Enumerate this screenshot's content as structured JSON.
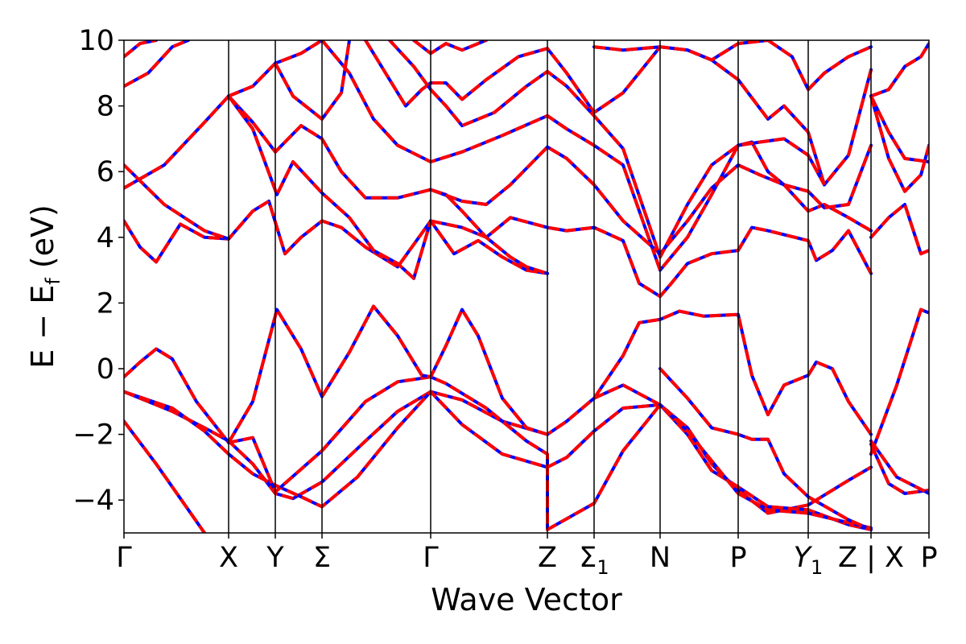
{
  "chart_data": {
    "type": "line",
    "xlabel": "Wave Vector",
    "ylabel_main": "E − E",
    "ylabel_sub": "f",
    "ylabel_unit": " (eV)",
    "xlim": [
      0,
      1
    ],
    "ylim": [
      -5,
      10
    ],
    "y_ticks": [
      {
        "v": -4,
        "label": "−4"
      },
      {
        "v": -2,
        "label": "−2"
      },
      {
        "v": 0,
        "label": "0"
      },
      {
        "v": 2,
        "label": "2"
      },
      {
        "v": 4,
        "label": "4"
      },
      {
        "v": 6,
        "label": "6"
      },
      {
        "v": 8,
        "label": "8"
      },
      {
        "v": 10,
        "label": "10"
      }
    ],
    "k_points": [
      {
        "x": 0.0,
        "label": "Γ",
        "sub": ""
      },
      {
        "x": 0.13,
        "label": "X",
        "sub": ""
      },
      {
        "x": 0.188,
        "label": "Y",
        "sub": ""
      },
      {
        "x": 0.246,
        "label": "Σ",
        "sub": ""
      },
      {
        "x": 0.381,
        "label": "Γ",
        "sub": ""
      },
      {
        "x": 0.526,
        "label": "Z",
        "sub": ""
      },
      {
        "x": 0.584,
        "label": "Σ",
        "sub": "1"
      },
      {
        "x": 0.666,
        "label": "N",
        "sub": ""
      },
      {
        "x": 0.763,
        "label": "P",
        "sub": ""
      },
      {
        "x": 0.85,
        "label": "Y",
        "sub": "1",
        "italic": true
      },
      {
        "x": 0.928,
        "label": "Z | X",
        "sub": ""
      },
      {
        "x": 1.0,
        "label": "P",
        "sub": ""
      }
    ],
    "grid": false,
    "band_color_a": "#0000ff",
    "band_color_b": "#ff0000",
    "bands": [
      [
        [
          0,
          -1.6
        ],
        [
          0.04,
          -2.9
        ],
        [
          0.08,
          -4.3
        ],
        [
          0.1,
          -5.0
        ]
      ],
      [
        [
          0,
          -0.7
        ],
        [
          0.06,
          -1.3
        ],
        [
          0.1,
          -1.8
        ],
        [
          0.13,
          -2.2
        ],
        [
          0.16,
          -2.9
        ],
        [
          0.188,
          -3.8
        ],
        [
          0.21,
          -3.95
        ],
        [
          0.246,
          -3.45
        ],
        [
          0.3,
          -2.2
        ],
        [
          0.34,
          -1.3
        ],
        [
          0.381,
          -0.7
        ],
        [
          0.42,
          -0.95
        ],
        [
          0.47,
          -1.6
        ],
        [
          0.526,
          -2.0
        ],
        [
          0.55,
          -1.6
        ],
        [
          0.584,
          -0.9
        ],
        [
          0.62,
          -0.5
        ],
        [
          0.666,
          -1.1
        ],
        [
          0.7,
          -1.8
        ],
        [
          0.73,
          -2.9
        ],
        [
          0.763,
          -3.7
        ],
        [
          0.8,
          -4.4
        ],
        [
          0.85,
          -4.15
        ],
        [
          0.9,
          -3.4
        ],
        [
          0.928,
          -3.0
        ]
      ],
      [
        [
          0,
          -0.7
        ],
        [
          0.06,
          -1.2
        ],
        [
          0.1,
          -1.9
        ],
        [
          0.13,
          -2.6
        ],
        [
          0.16,
          -3.2
        ],
        [
          0.188,
          -3.55
        ],
        [
          0.22,
          -3.9
        ],
        [
          0.246,
          -4.2
        ],
        [
          0.29,
          -3.3
        ],
        [
          0.34,
          -1.8
        ],
        [
          0.381,
          -0.7
        ],
        [
          0.42,
          -1.7
        ],
        [
          0.47,
          -2.6
        ],
        [
          0.526,
          -3.0
        ],
        [
          0.55,
          -2.7
        ],
        [
          0.584,
          -1.9
        ],
        [
          0.62,
          -1.2
        ],
        [
          0.666,
          -1.1
        ],
        [
          0.7,
          -2.0
        ],
        [
          0.73,
          -3.1
        ],
        [
          0.763,
          -3.6
        ],
        [
          0.8,
          -4.2
        ],
        [
          0.85,
          -4.3
        ],
        [
          0.9,
          -4.75
        ],
        [
          0.928,
          -4.9
        ]
      ],
      [
        [
          0,
          -0.25
        ],
        [
          0.02,
          0.2
        ],
        [
          0.04,
          0.6
        ],
        [
          0.06,
          0.3
        ],
        [
          0.09,
          -1.0
        ],
        [
          0.13,
          -2.25
        ],
        [
          0.16,
          -2.1
        ],
        [
          0.188,
          -3.75
        ],
        [
          0.246,
          -2.5
        ],
        [
          0.3,
          -1.0
        ],
        [
          0.34,
          -0.4
        ],
        [
          0.381,
          -0.25
        ],
        [
          0.4,
          -0.45
        ],
        [
          0.45,
          -1.2
        ],
        [
          0.5,
          -2.2
        ],
        [
          0.526,
          -2.6
        ],
        [
          0.526,
          -4.9
        ],
        [
          0.584,
          -4.1
        ],
        [
          0.62,
          -2.5
        ],
        [
          0.666,
          -1.1
        ],
        [
          0.7,
          -1.9
        ],
        [
          0.763,
          -3.8
        ],
        [
          0.8,
          -4.3
        ],
        [
          0.85,
          -4.4
        ],
        [
          0.928,
          -4.85
        ]
      ],
      [
        [
          0.13,
          -2.25
        ],
        [
          0.16,
          -1.0
        ],
        [
          0.19,
          1.8
        ],
        [
          0.22,
          0.6
        ],
        [
          0.246,
          -0.85
        ],
        [
          0.28,
          0.5
        ],
        [
          0.31,
          1.9
        ],
        [
          0.34,
          1.0
        ],
        [
          0.37,
          -0.2
        ],
        [
          0.381,
          -0.25
        ],
        [
          0.4,
          0.7
        ],
        [
          0.42,
          1.8
        ],
        [
          0.44,
          1.0
        ],
        [
          0.47,
          -0.9
        ],
        [
          0.5,
          -1.8
        ],
        [
          0.526,
          -2.0
        ]
      ],
      [
        [
          0.584,
          -0.9
        ],
        [
          0.62,
          0.4
        ],
        [
          0.64,
          1.4
        ],
        [
          0.666,
          1.5
        ],
        [
          0.69,
          1.75
        ],
        [
          0.72,
          1.6
        ],
        [
          0.763,
          1.65
        ],
        [
          0.78,
          -0.2
        ],
        [
          0.8,
          -1.4
        ],
        [
          0.82,
          -0.5
        ],
        [
          0.85,
          -0.2
        ],
        [
          0.86,
          0.2
        ],
        [
          0.88,
          0.0
        ],
        [
          0.9,
          -1.0
        ],
        [
          0.928,
          -2.0
        ]
      ],
      [
        [
          0.666,
          0.0
        ],
        [
          0.7,
          -0.9
        ],
        [
          0.73,
          -1.8
        ],
        [
          0.763,
          -2.0
        ],
        [
          0.78,
          -2.15
        ],
        [
          0.8,
          -2.15
        ],
        [
          0.82,
          -3.2
        ],
        [
          0.85,
          -3.9
        ],
        [
          0.9,
          -4.6
        ],
        [
          0.928,
          -4.9
        ]
      ],
      [
        [
          0.928,
          -2.3
        ],
        [
          0.95,
          -3.5
        ],
        [
          0.97,
          -3.8
        ],
        [
          1.0,
          -3.7
        ]
      ],
      [
        [
          0.928,
          -2.6
        ],
        [
          0.96,
          -0.5
        ],
        [
          0.99,
          1.8
        ],
        [
          1.0,
          1.7
        ]
      ],
      [
        [
          0.928,
          -2.2
        ],
        [
          0.96,
          -3.3
        ],
        [
          1.0,
          -3.8
        ]
      ],
      [
        [
          0,
          4.5
        ],
        [
          0.02,
          3.7
        ],
        [
          0.04,
          3.25
        ],
        [
          0.07,
          4.4
        ],
        [
          0.1,
          4.0
        ],
        [
          0.13,
          3.95
        ],
        [
          0.16,
          4.8
        ],
        [
          0.18,
          5.1
        ],
        [
          0.2,
          3.5
        ],
        [
          0.22,
          4.0
        ],
        [
          0.246,
          4.5
        ],
        [
          0.27,
          4.3
        ],
        [
          0.3,
          3.7
        ],
        [
          0.34,
          3.1
        ],
        [
          0.381,
          4.5
        ],
        [
          0.41,
          3.5
        ],
        [
          0.44,
          3.9
        ],
        [
          0.47,
          3.4
        ],
        [
          0.5,
          3.0
        ],
        [
          0.526,
          2.9
        ]
      ],
      [
        [
          0,
          5.5
        ],
        [
          0.05,
          6.2
        ],
        [
          0.1,
          7.5
        ],
        [
          0.13,
          8.3
        ],
        [
          0.16,
          7.5
        ],
        [
          0.188,
          6.6
        ],
        [
          0.22,
          7.4
        ],
        [
          0.246,
          7.0
        ],
        [
          0.27,
          6.0
        ],
        [
          0.3,
          5.2
        ],
        [
          0.34,
          5.2
        ],
        [
          0.381,
          5.45
        ],
        [
          0.4,
          5.3
        ],
        [
          0.42,
          4.8
        ],
        [
          0.45,
          4.0
        ],
        [
          0.48,
          3.4
        ],
        [
          0.5,
          3.1
        ],
        [
          0.526,
          2.9
        ]
      ],
      [
        [
          0,
          6.2
        ],
        [
          0.05,
          5.0
        ],
        [
          0.1,
          4.2
        ],
        [
          0.13,
          3.95
        ]
      ],
      [
        [
          0.13,
          8.3
        ],
        [
          0.16,
          7.3
        ],
        [
          0.19,
          5.3
        ],
        [
          0.21,
          6.3
        ],
        [
          0.246,
          5.35
        ],
        [
          0.28,
          4.6
        ],
        [
          0.31,
          3.6
        ],
        [
          0.34,
          3.2
        ],
        [
          0.36,
          2.75
        ],
        [
          0.381,
          4.5
        ]
      ],
      [
        [
          0,
          8.6
        ],
        [
          0.03,
          9.0
        ],
        [
          0.06,
          9.8
        ],
        [
          0.08,
          10.0
        ]
      ],
      [
        [
          0,
          9.5
        ],
        [
          0.02,
          9.9
        ],
        [
          0.04,
          10.0
        ]
      ],
      [
        [
          0.13,
          8.3
        ],
        [
          0.16,
          8.6
        ],
        [
          0.188,
          9.3
        ],
        [
          0.22,
          9.6
        ],
        [
          0.246,
          10.0
        ]
      ],
      [
        [
          0.188,
          9.3
        ],
        [
          0.21,
          8.3
        ],
        [
          0.246,
          7.6
        ],
        [
          0.27,
          8.4
        ],
        [
          0.28,
          10.0
        ]
      ],
      [
        [
          0.246,
          10.0
        ],
        [
          0.28,
          9.0
        ],
        [
          0.31,
          7.6
        ],
        [
          0.34,
          6.8
        ],
        [
          0.381,
          6.3
        ],
        [
          0.42,
          6.6
        ],
        [
          0.47,
          7.1
        ],
        [
          0.526,
          7.7
        ],
        [
          0.55,
          7.3
        ],
        [
          0.584,
          6.8
        ],
        [
          0.62,
          6.2
        ],
        [
          0.666,
          3.0
        ],
        [
          0.7,
          4.0
        ],
        [
          0.73,
          5.3
        ],
        [
          0.763,
          6.8
        ],
        [
          0.78,
          6.9
        ],
        [
          0.8,
          6.0
        ],
        [
          0.82,
          5.6
        ],
        [
          0.85,
          4.8
        ],
        [
          0.87,
          5.0
        ],
        [
          0.9,
          4.6
        ],
        [
          0.928,
          4.2
        ]
      ],
      [
        [
          0.381,
          5.45
        ],
        [
          0.42,
          5.1
        ],
        [
          0.45,
          5.0
        ],
        [
          0.48,
          5.6
        ],
        [
          0.526,
          6.75
        ],
        [
          0.55,
          6.4
        ],
        [
          0.584,
          5.6
        ],
        [
          0.62,
          4.5
        ],
        [
          0.666,
          3.5
        ],
        [
          0.7,
          4.5
        ],
        [
          0.73,
          5.5
        ],
        [
          0.763,
          6.2
        ],
        [
          0.79,
          5.9
        ],
        [
          0.82,
          5.6
        ],
        [
          0.85,
          5.4
        ],
        [
          0.87,
          4.9
        ],
        [
          0.9,
          5.0
        ],
        [
          0.928,
          6.8
        ]
      ],
      [
        [
          0.381,
          4.5
        ],
        [
          0.42,
          4.3
        ],
        [
          0.45,
          4.0
        ],
        [
          0.48,
          4.6
        ],
        [
          0.526,
          4.3
        ],
        [
          0.55,
          4.2
        ],
        [
          0.584,
          4.3
        ],
        [
          0.62,
          3.9
        ],
        [
          0.64,
          2.6
        ],
        [
          0.666,
          2.2
        ],
        [
          0.68,
          2.6
        ],
        [
          0.7,
          3.2
        ],
        [
          0.73,
          3.5
        ],
        [
          0.763,
          3.6
        ],
        [
          0.78,
          4.3
        ],
        [
          0.8,
          4.2
        ],
        [
          0.85,
          3.9
        ],
        [
          0.86,
          3.3
        ],
        [
          0.88,
          3.6
        ],
        [
          0.9,
          4.2
        ],
        [
          0.928,
          2.9
        ]
      ],
      [
        [
          0.3,
          10.0
        ],
        [
          0.33,
          8.8
        ],
        [
          0.35,
          8.0
        ],
        [
          0.37,
          8.5
        ],
        [
          0.381,
          8.7
        ],
        [
          0.4,
          8.7
        ],
        [
          0.42,
          8.2
        ],
        [
          0.45,
          8.8
        ],
        [
          0.49,
          9.5
        ],
        [
          0.526,
          9.75
        ],
        [
          0.55,
          9.0
        ],
        [
          0.584,
          7.8
        ],
        [
          0.62,
          8.4
        ],
        [
          0.666,
          9.8
        ],
        [
          0.7,
          9.7
        ],
        [
          0.73,
          9.4
        ],
        [
          0.763,
          8.8
        ],
        [
          0.8,
          7.6
        ],
        [
          0.82,
          8.0
        ],
        [
          0.85,
          7.2
        ],
        [
          0.87,
          5.6
        ],
        [
          0.9,
          6.5
        ],
        [
          0.928,
          9.1
        ]
      ],
      [
        [
          0.33,
          10.0
        ],
        [
          0.36,
          9.2
        ],
        [
          0.381,
          8.5
        ],
        [
          0.4,
          8.0
        ],
        [
          0.42,
          7.4
        ],
        [
          0.46,
          7.8
        ],
        [
          0.5,
          8.6
        ],
        [
          0.526,
          9.05
        ],
        [
          0.55,
          8.6
        ],
        [
          0.584,
          7.7
        ],
        [
          0.62,
          6.7
        ],
        [
          0.666,
          3.4
        ],
        [
          0.7,
          5.0
        ],
        [
          0.73,
          6.2
        ],
        [
          0.763,
          6.8
        ],
        [
          0.79,
          6.9
        ],
        [
          0.82,
          7.0
        ],
        [
          0.85,
          6.5
        ],
        [
          0.87,
          5.6
        ]
      ],
      [
        [
          0.36,
          10.0
        ],
        [
          0.381,
          9.6
        ],
        [
          0.4,
          9.9
        ],
        [
          0.42,
          9.7
        ],
        [
          0.45,
          10.0
        ]
      ],
      [
        [
          0.584,
          9.8
        ],
        [
          0.62,
          9.7
        ],
        [
          0.666,
          9.8
        ],
        [
          0.7,
          9.7
        ],
        [
          0.73,
          9.4
        ],
        [
          0.763,
          9.9
        ],
        [
          0.8,
          10.0
        ]
      ],
      [
        [
          0.8,
          10.0
        ],
        [
          0.83,
          9.5
        ],
        [
          0.85,
          8.5
        ],
        [
          0.87,
          9.0
        ],
        [
          0.9,
          9.5
        ],
        [
          0.928,
          9.8
        ]
      ],
      [
        [
          0.928,
          8.3
        ],
        [
          0.95,
          7.2
        ],
        [
          0.97,
          6.4
        ],
        [
          1.0,
          6.3
        ]
      ],
      [
        [
          0.928,
          8.3
        ],
        [
          0.95,
          8.5
        ],
        [
          0.97,
          9.2
        ],
        [
          0.99,
          9.5
        ],
        [
          1.0,
          9.9
        ]
      ],
      [
        [
          0.928,
          8.3
        ],
        [
          0.95,
          6.4
        ],
        [
          0.97,
          5.4
        ],
        [
          0.99,
          5.9
        ],
        [
          1.0,
          6.8
        ]
      ],
      [
        [
          0.928,
          4.0
        ],
        [
          0.95,
          4.6
        ],
        [
          0.97,
          5.0
        ],
        [
          0.99,
          3.5
        ],
        [
          1.0,
          3.6
        ]
      ]
    ]
  }
}
